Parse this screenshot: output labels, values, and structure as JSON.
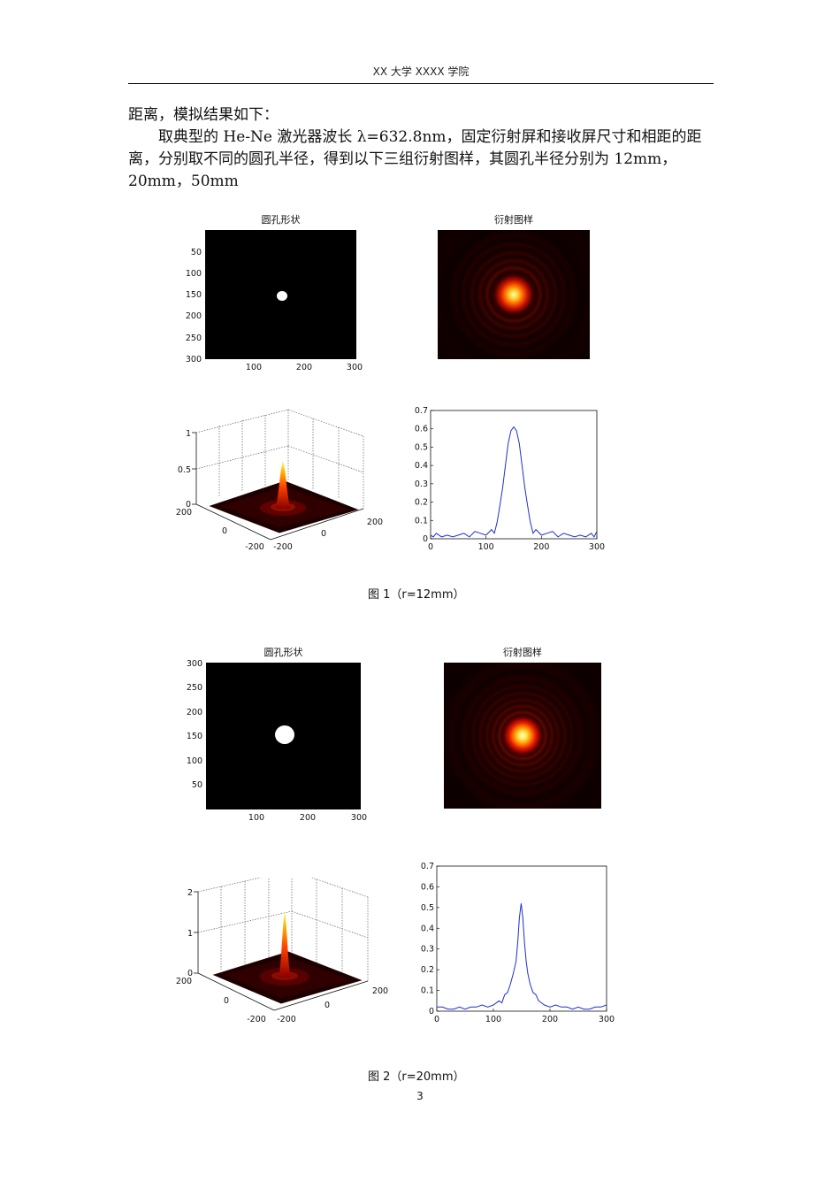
{
  "header": {
    "text": "XX 大学 XXXX 学院"
  },
  "body": {
    "line1": "距离，模拟结果如下：",
    "para2": "取典型的 He-Ne 激光器波长 λ=632.8nm，固定衍射屏和接收屏尺寸和相距的距离，分别取不同的圆孔半径，得到以下三组衍射图样，其圆孔半径分别为 12mm，20mm，50mm"
  },
  "figure1": {
    "aperture_title": "圆孔形状",
    "aperture_yticks": [
      "50",
      "100",
      "150",
      "200",
      "250",
      "300"
    ],
    "aperture_xticks": [
      "100",
      "200",
      "300"
    ],
    "pattern_title": "衍射图样",
    "surface_zticks": [
      "1",
      "0.5",
      "0"
    ],
    "surface_left_ticks": [
      "200",
      "0",
      "-200"
    ],
    "surface_right_ticks": [
      "-200",
      "0",
      "200"
    ],
    "caption": "图  1（r=12mm）"
  },
  "figure2": {
    "aperture_title": "圆孔形状",
    "aperture_yticks": [
      "300",
      "250",
      "200",
      "150",
      "100",
      "50"
    ],
    "aperture_xticks": [
      "100",
      "200",
      "300"
    ],
    "pattern_title": "衍射图样",
    "surface_zticks": [
      "2",
      "1",
      "0"
    ],
    "surface_left_ticks": [
      "200",
      "0",
      "-200"
    ],
    "surface_right_ticks": [
      "-200",
      "0",
      "200"
    ],
    "caption": "图  2（r=20mm）"
  },
  "chart_data": [
    {
      "type": "line",
      "title": "",
      "xlabel": "",
      "ylabel": "",
      "xlim": [
        0,
        300
      ],
      "ylim": [
        0,
        0.7
      ],
      "xticks": [
        "0",
        "100",
        "200",
        "300"
      ],
      "yticks": [
        "0",
        "0.1",
        "0.2",
        "0.3",
        "0.4",
        "0.5",
        "0.6",
        "0.7"
      ],
      "x": [
        0,
        5,
        10,
        20,
        30,
        40,
        50,
        60,
        70,
        80,
        90,
        100,
        110,
        115,
        120,
        125,
        130,
        135,
        140,
        145,
        150,
        155,
        160,
        165,
        170,
        175,
        180,
        185,
        190,
        200,
        210,
        220,
        230,
        240,
        250,
        260,
        270,
        280,
        290,
        295,
        300
      ],
      "y": [
        0.02,
        0.01,
        0.03,
        0.01,
        0.02,
        0.01,
        0.02,
        0.03,
        0.01,
        0.04,
        0.03,
        0.02,
        0.05,
        0.03,
        0.09,
        0.18,
        0.28,
        0.4,
        0.52,
        0.59,
        0.61,
        0.59,
        0.52,
        0.4,
        0.28,
        0.18,
        0.09,
        0.03,
        0.05,
        0.02,
        0.03,
        0.04,
        0.01,
        0.03,
        0.02,
        0.01,
        0.02,
        0.01,
        0.03,
        0.01,
        0.04
      ]
    },
    {
      "type": "line",
      "title": "",
      "xlabel": "",
      "ylabel": "",
      "xlim": [
        0,
        300
      ],
      "ylim": [
        0,
        0.7
      ],
      "xticks": [
        "0",
        "100",
        "200",
        "300"
      ],
      "yticks": [
        "0",
        "0.1",
        "0.2",
        "0.3",
        "0.4",
        "0.5",
        "0.6",
        "0.7"
      ],
      "x": [
        0,
        10,
        20,
        30,
        40,
        50,
        60,
        70,
        80,
        90,
        100,
        110,
        115,
        120,
        125,
        130,
        135,
        140,
        143,
        146,
        149,
        152,
        155,
        158,
        161,
        165,
        170,
        175,
        180,
        185,
        190,
        200,
        210,
        220,
        230,
        240,
        250,
        260,
        270,
        280,
        290,
        300
      ],
      "y": [
        0.02,
        0.02,
        0.01,
        0.01,
        0.02,
        0.01,
        0.02,
        0.02,
        0.03,
        0.02,
        0.03,
        0.05,
        0.04,
        0.08,
        0.09,
        0.13,
        0.18,
        0.24,
        0.33,
        0.45,
        0.52,
        0.45,
        0.33,
        0.24,
        0.18,
        0.13,
        0.09,
        0.08,
        0.05,
        0.04,
        0.03,
        0.02,
        0.03,
        0.02,
        0.02,
        0.01,
        0.02,
        0.01,
        0.01,
        0.02,
        0.02,
        0.03
      ]
    }
  ]
}
